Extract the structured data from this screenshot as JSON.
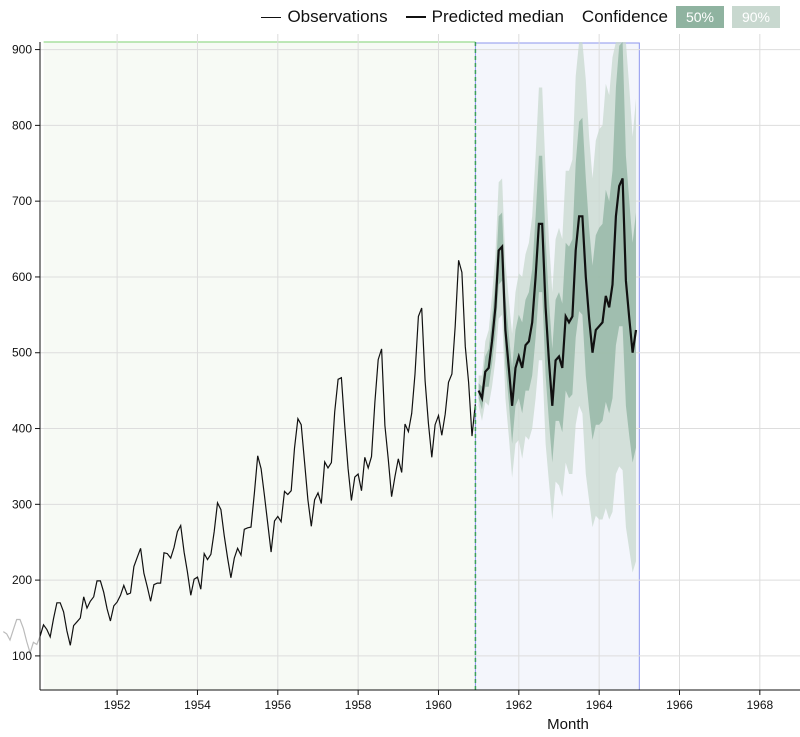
{
  "legend": {
    "observations": "Observations",
    "median": "Predicted median",
    "confidence": "Confidence",
    "band50": "50%",
    "band90": "90%"
  },
  "colors": {
    "observed_line": "#111111",
    "early_observed_line": "#bbbbbb",
    "median_line": "#111111",
    "band50": "#8fb3a0",
    "band90": "#c8d8cf",
    "train_region": "#f7faf5",
    "train_border": "#a8e0a0",
    "forecast_region": "#f4f6fc",
    "forecast_border": "#8c96ee",
    "split_line": "#3aa05a",
    "grid": "#dddddd"
  },
  "chart_data": {
    "type": "line",
    "xlabel": "Month",
    "ylabel": "",
    "xlim": [
      1950.08,
      1969.0
    ],
    "ylim": [
      55,
      910
    ],
    "x_ticks": [
      1952,
      1954,
      1956,
      1958,
      1960,
      1962,
      1964,
      1966,
      1968
    ],
    "y_ticks": [
      100,
      200,
      300,
      400,
      500,
      600,
      700,
      800,
      900
    ],
    "grid": true,
    "legend_position": "top-right",
    "training_period": [
      1950.17,
      1960.92
    ],
    "forecast_period": [
      1960.92,
      1965.0
    ],
    "observations": {
      "start": 1949.0,
      "step_months": 1,
      "values": [
        112,
        118,
        132,
        129,
        121,
        135,
        148,
        148,
        136,
        119,
        104,
        118,
        115,
        126,
        141,
        135,
        125,
        149,
        170,
        170,
        158,
        133,
        114,
        140,
        145,
        150,
        178,
        163,
        172,
        178,
        199,
        199,
        184,
        162,
        146,
        166,
        171,
        180,
        193,
        181,
        183,
        218,
        230,
        242,
        209,
        191,
        172,
        194,
        196,
        196,
        236,
        235,
        229,
        243,
        264,
        272,
        237,
        211,
        180,
        201,
        204,
        188,
        235,
        227,
        234,
        264,
        302,
        293,
        259,
        229,
        203,
        229,
        242,
        233,
        267,
        269,
        270,
        315,
        364,
        347,
        312,
        274,
        237,
        278,
        284,
        277,
        317,
        313,
        318,
        374,
        413,
        405,
        355,
        306,
        271,
        306,
        315,
        301,
        356,
        348,
        355,
        422,
        465,
        467,
        404,
        347,
        305,
        336,
        340,
        318,
        362,
        348,
        363,
        435,
        491,
        505,
        404,
        359,
        310,
        337,
        360,
        342,
        406,
        396,
        420,
        472,
        548,
        559,
        463,
        407,
        362,
        405,
        417,
        391,
        419,
        461,
        472,
        535,
        622,
        606,
        508,
        461,
        390,
        432
      ]
    },
    "forecast": {
      "start": 1961.0,
      "step_months": 1,
      "median": [
        450,
        440,
        475,
        480,
        515,
        560,
        635,
        640,
        530,
        480,
        430,
        480,
        495,
        480,
        510,
        515,
        540,
        600,
        670,
        670,
        560,
        490,
        430,
        490,
        495,
        480,
        548,
        540,
        548,
        635,
        680,
        680,
        600,
        545,
        500,
        530,
        535,
        540,
        575,
        560,
        590,
        680,
        720,
        730,
        595,
        545,
        500,
        530
      ],
      "p25": [
        440,
        425,
        455,
        455,
        485,
        525,
        590,
        595,
        485,
        435,
        380,
        430,
        440,
        420,
        450,
        450,
        470,
        520,
        580,
        580,
        470,
        410,
        355,
        410,
        410,
        395,
        450,
        440,
        445,
        520,
        555,
        550,
        470,
        425,
        385,
        405,
        405,
        410,
        435,
        420,
        440,
        510,
        535,
        535,
        430,
        390,
        355,
        375
      ],
      "p75": [
        460,
        455,
        495,
        505,
        545,
        595,
        680,
        685,
        575,
        525,
        480,
        530,
        550,
        540,
        570,
        580,
        610,
        680,
        760,
        760,
        650,
        570,
        505,
        570,
        580,
        565,
        645,
        640,
        650,
        750,
        805,
        810,
        730,
        665,
        615,
        655,
        665,
        670,
        715,
        700,
        740,
        850,
        905,
        925,
        760,
        700,
        645,
        685
      ],
      "p05": [
        430,
        410,
        435,
        430,
        455,
        490,
        545,
        550,
        440,
        390,
        335,
        380,
        385,
        360,
        390,
        385,
        400,
        440,
        490,
        490,
        380,
        330,
        280,
        330,
        325,
        310,
        355,
        340,
        340,
        405,
        430,
        420,
        340,
        305,
        270,
        285,
        280,
        280,
        295,
        280,
        290,
        340,
        350,
        345,
        270,
        240,
        210,
        225
      ],
      "p95": [
        470,
        470,
        515,
        530,
        575,
        630,
        725,
        730,
        620,
        570,
        525,
        580,
        605,
        600,
        630,
        645,
        680,
        760,
        850,
        850,
        740,
        650,
        580,
        650,
        665,
        650,
        740,
        740,
        755,
        865,
        930,
        940,
        860,
        785,
        730,
        780,
        795,
        800,
        855,
        840,
        890,
        1020,
        1090,
        1115,
        920,
        850,
        785,
        835
      ]
    }
  }
}
